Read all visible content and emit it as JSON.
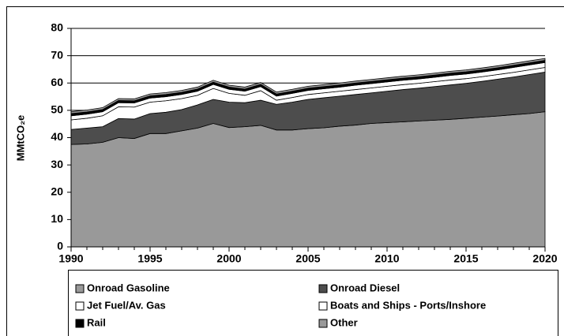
{
  "chart_data": {
    "type": "stacked_area",
    "y_label": "MMtCO₂e",
    "x": [
      1990,
      1991,
      1992,
      1993,
      1994,
      1995,
      1996,
      1997,
      1998,
      1999,
      2000,
      2001,
      2002,
      2003,
      2004,
      2005,
      2006,
      2007,
      2008,
      2009,
      2010,
      2011,
      2012,
      2013,
      2014,
      2015,
      2016,
      2017,
      2018,
      2019,
      2020
    ],
    "xlim": [
      1990,
      2020
    ],
    "xticks": [
      1990,
      1995,
      2000,
      2005,
      2010,
      2015,
      2020
    ],
    "ylim": [
      0,
      80
    ],
    "yticks": [
      0,
      10,
      20,
      30,
      40,
      50,
      60,
      70,
      80
    ],
    "grid": true,
    "series": [
      {
        "name": "Onroad Gasoline",
        "color": "#999999",
        "values": [
          37.5,
          37.7,
          38.3,
          40,
          39.7,
          41.5,
          41.5,
          42.5,
          43.5,
          45.2,
          43.7,
          44,
          44.5,
          42.8,
          42.8,
          43.3,
          43.6,
          44.2,
          44.6,
          45.2,
          45.5,
          45.8,
          46.1,
          46.4,
          46.7,
          47.1,
          47.5,
          47.9,
          48.4,
          48.8,
          49.5
        ]
      },
      {
        "name": "Onroad Diesel",
        "color": "#4d4d4d",
        "values": [
          5.5,
          5.8,
          5.7,
          7,
          7.1,
          7.3,
          7.8,
          7.8,
          8.5,
          8.8,
          9.3,
          8.8,
          9.2,
          9.4,
          10.2,
          10.7,
          11,
          11,
          11.2,
          11.2,
          11.5,
          11.8,
          12,
          12.3,
          12.6,
          12.8,
          13.1,
          13.5,
          13.8,
          14.3,
          14.5
        ]
      },
      {
        "name": "Jet Fuel/Av. Gas",
        "color": "#ffffff",
        "values": [
          3.5,
          3.6,
          4,
          4.3,
          4.4,
          4.2,
          4.2,
          4,
          3.5,
          4,
          3.2,
          2.7,
          3.5,
          1.5,
          1.7,
          1.8,
          1.8,
          1.8,
          1.8,
          1.8,
          1.8,
          1.8,
          1.8,
          1.8,
          1.8,
          1.7,
          1.7,
          1.7,
          1.7,
          1.7,
          1.7
        ]
      },
      {
        "name": "Boats and Ships - Ports/Inshore",
        "color": "#ffffff",
        "values": [
          1.5,
          1.5,
          1.5,
          1.5,
          1.5,
          1.5,
          1.5,
          1.5,
          1.5,
          1.5,
          1.5,
          1.5,
          1.5,
          1.5,
          1.5,
          1.5,
          1.5,
          1.5,
          1.6,
          1.6,
          1.6,
          1.6,
          1.6,
          1.6,
          1.7,
          1.7,
          1.7,
          1.7,
          1.8,
          1.8,
          1.8
        ]
      },
      {
        "name": "Rail",
        "color": "#000000",
        "values": [
          0.8,
          0.8,
          0.8,
          0.8,
          0.8,
          0.8,
          0.8,
          0.8,
          0.8,
          0.8,
          0.8,
          0.8,
          0.8,
          0.8,
          0.8,
          0.8,
          0.8,
          0.8,
          0.8,
          0.8,
          0.8,
          0.8,
          0.8,
          0.8,
          0.8,
          0.8,
          0.8,
          0.8,
          0.8,
          0.8,
          0.8
        ]
      },
      {
        "name": "Other",
        "color": "#999999",
        "values": [
          0.7,
          0.7,
          0.7,
          0.7,
          0.7,
          0.7,
          0.7,
          0.7,
          0.7,
          0.7,
          0.7,
          0.7,
          0.7,
          0.7,
          0.7,
          0.7,
          0.7,
          0.7,
          0.7,
          0.7,
          0.7,
          0.7,
          0.7,
          0.7,
          0.7,
          0.7,
          0.7,
          0.7,
          0.7,
          0.7,
          0.7
        ]
      }
    ],
    "legend": "bottom"
  }
}
